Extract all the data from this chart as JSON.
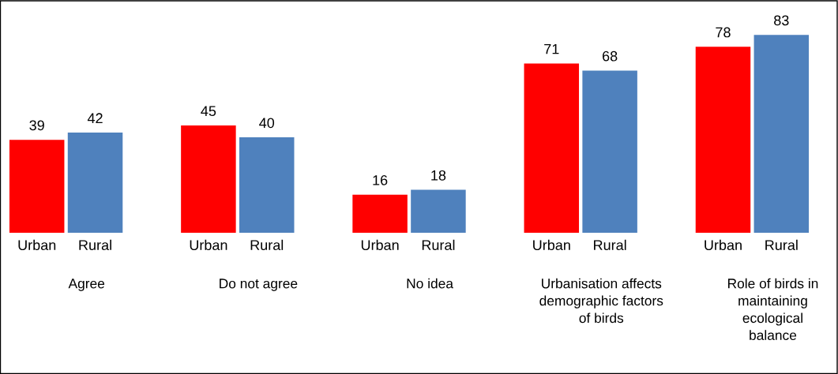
{
  "chart_data": {
    "type": "bar",
    "categories": [
      "Agree",
      "Do not agree",
      "No idea",
      "Urbanisation affects\ndemographic factors\nof birds",
      "Role of birds in\nmaintaining\necological\nbalance"
    ],
    "series": [
      {
        "name": "Urban",
        "color": "#ff0000",
        "values": [
          39,
          45,
          16,
          71,
          78
        ]
      },
      {
        "name": "Rural",
        "color": "#4f81bd",
        "values": [
          42,
          40,
          18,
          68,
          83
        ]
      }
    ],
    "data_labels": true,
    "legend": false
  }
}
